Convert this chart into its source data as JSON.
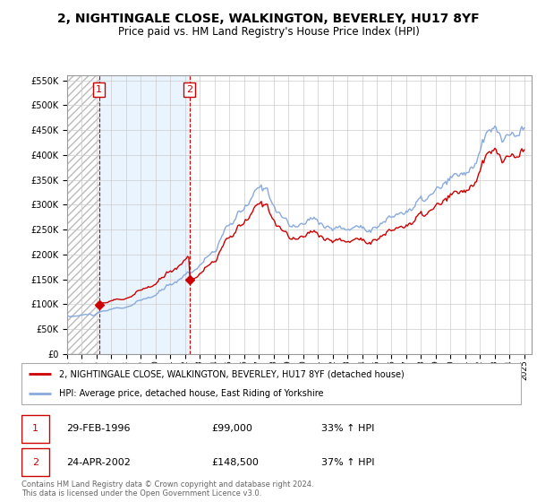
{
  "title": "2, NIGHTINGALE CLOSE, WALKINGTON, BEVERLEY, HU17 8YF",
  "subtitle": "Price paid vs. HM Land Registry's House Price Index (HPI)",
  "title_fontsize": 10,
  "subtitle_fontsize": 8.5,
  "xlim_start": 1994.0,
  "xlim_end": 2025.5,
  "ylim_min": 0,
  "ylim_max": 560000,
  "yticks": [
    0,
    50000,
    100000,
    150000,
    200000,
    250000,
    300000,
    350000,
    400000,
    450000,
    500000,
    550000
  ],
  "ytick_labels": [
    "£0",
    "£50K",
    "£100K",
    "£150K",
    "£200K",
    "£250K",
    "£300K",
    "£350K",
    "£400K",
    "£450K",
    "£500K",
    "£550K"
  ],
  "xticks": [
    1994,
    1995,
    1996,
    1997,
    1998,
    1999,
    2000,
    2001,
    2002,
    2003,
    2004,
    2005,
    2006,
    2007,
    2008,
    2009,
    2010,
    2011,
    2012,
    2013,
    2014,
    2015,
    2016,
    2017,
    2018,
    2019,
    2020,
    2021,
    2022,
    2023,
    2024,
    2025
  ],
  "sale1_x": 1996.16,
  "sale1_y": 99000,
  "sale1_label": "1",
  "sale1_date": "29-FEB-1996",
  "sale1_price": "£99,000",
  "sale1_hpi": "33% ↑ HPI",
  "sale2_x": 2002.3,
  "sale2_y": 148500,
  "sale2_label": "2",
  "sale2_date": "24-APR-2002",
  "sale2_price": "£148,500",
  "sale2_hpi": "37% ↑ HPI",
  "property_line_color": "#cc0000",
  "hpi_line_color": "#88aadd",
  "background_color": "#ffffff",
  "plot_bg_color": "#ffffff",
  "grid_color": "#cccccc",
  "legend_property": "2, NIGHTINGALE CLOSE, WALKINGTON, BEVERLEY, HU17 8YF (detached house)",
  "legend_hpi": "HPI: Average price, detached house, East Riding of Yorkshire",
  "footer1": "Contains HM Land Registry data © Crown copyright and database right 2024.",
  "footer2": "This data is licensed under the Open Government Licence v3.0.",
  "sale_marker_color": "#cc0000",
  "sale_box_color": "#cc0000",
  "dashed_vline_color": "#cc0000",
  "hatch_color": "#bbbbbb",
  "shade_color": "#ddeeff"
}
